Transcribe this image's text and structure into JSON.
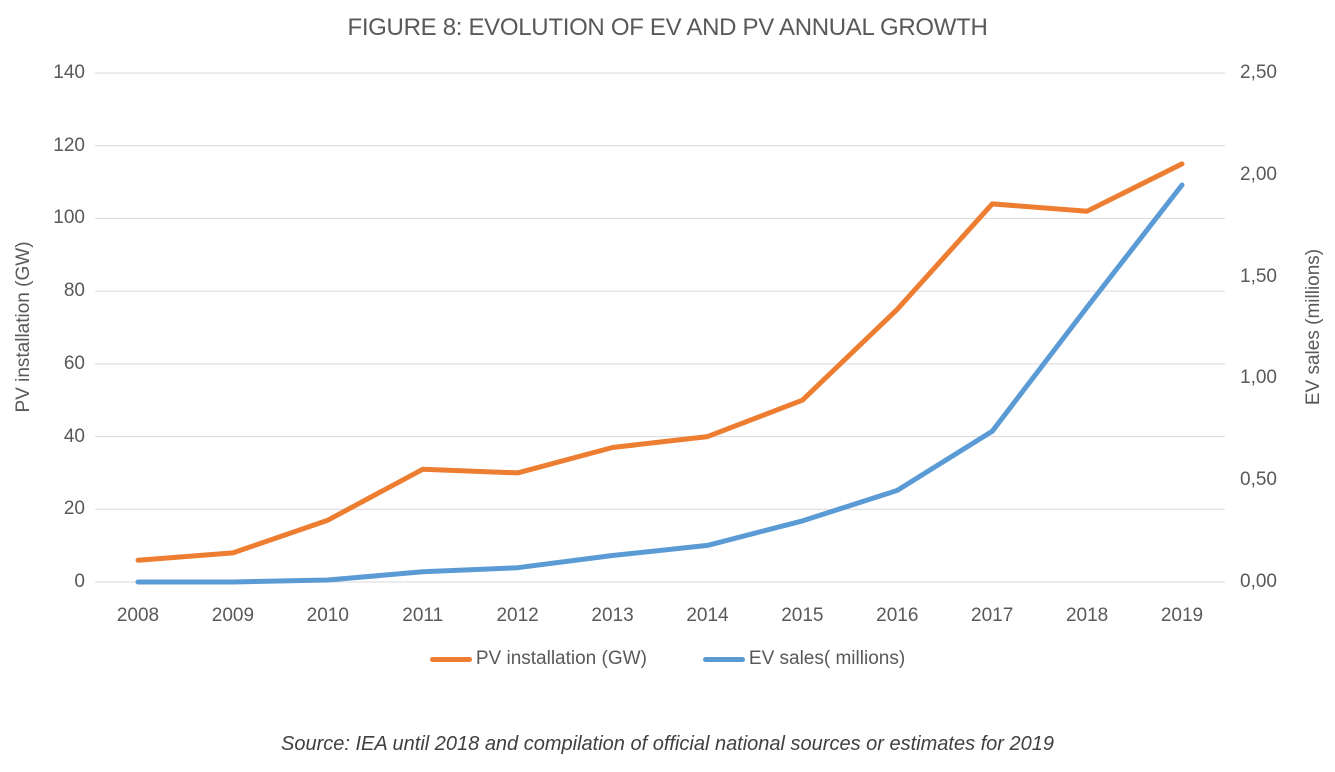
{
  "chart": {
    "title": "FIGURE 8: EVOLUTION OF EV AND PV ANNUAL GROWTH",
    "left_axis": {
      "title": "PV installation (GW)",
      "tick_labels": [
        "140",
        "120",
        "100",
        "80",
        "60",
        "40",
        "20",
        "0"
      ]
    },
    "right_axis": {
      "title": "EV sales (millions)",
      "tick_labels": [
        "2,50",
        "2,00",
        "1,50",
        "1,00",
        "0,50",
        "0,00"
      ]
    },
    "legend": [
      {
        "label": "PV installation (GW)",
        "color": "#ED7D31"
      },
      {
        "label": "EV sales( millions)",
        "color": "#5B9BD5"
      }
    ]
  },
  "chart_data": {
    "type": "line",
    "title": "FIGURE 8: EVOLUTION OF EV AND PV ANNUAL GROWTH",
    "x": [
      2008,
      2009,
      2010,
      2011,
      2012,
      2013,
      2014,
      2015,
      2016,
      2017,
      2018,
      2019
    ],
    "series": [
      {
        "name": "PV installation (GW)",
        "axis": "left",
        "color": "#ED7D31",
        "values": [
          6,
          8,
          17,
          31,
          30,
          37,
          40,
          50,
          75,
          104,
          102,
          115
        ]
      },
      {
        "name": "EV sales( millions)",
        "axis": "right",
        "color": "#5B9BD5",
        "values": [
          0.0,
          0.0,
          0.01,
          0.05,
          0.07,
          0.13,
          0.18,
          0.3,
          0.45,
          0.74,
          1.35,
          1.95
        ]
      }
    ],
    "left_ylabel": "PV installation (GW)",
    "right_ylabel": "EV sales (millions)",
    "left_ylim": [
      0,
      140
    ],
    "right_ylim": [
      0,
      2.5
    ],
    "grid": true,
    "legend_position": "bottom"
  },
  "source": "Source: IEA until 2018 and compilation of official national sources or estimates for 2019",
  "colors": {
    "pv_line": "#ED7D31",
    "ev_line": "#5B9BD5",
    "gridline": "#D9D9D9",
    "axis_text": "#595959",
    "source_text": "#404040"
  }
}
